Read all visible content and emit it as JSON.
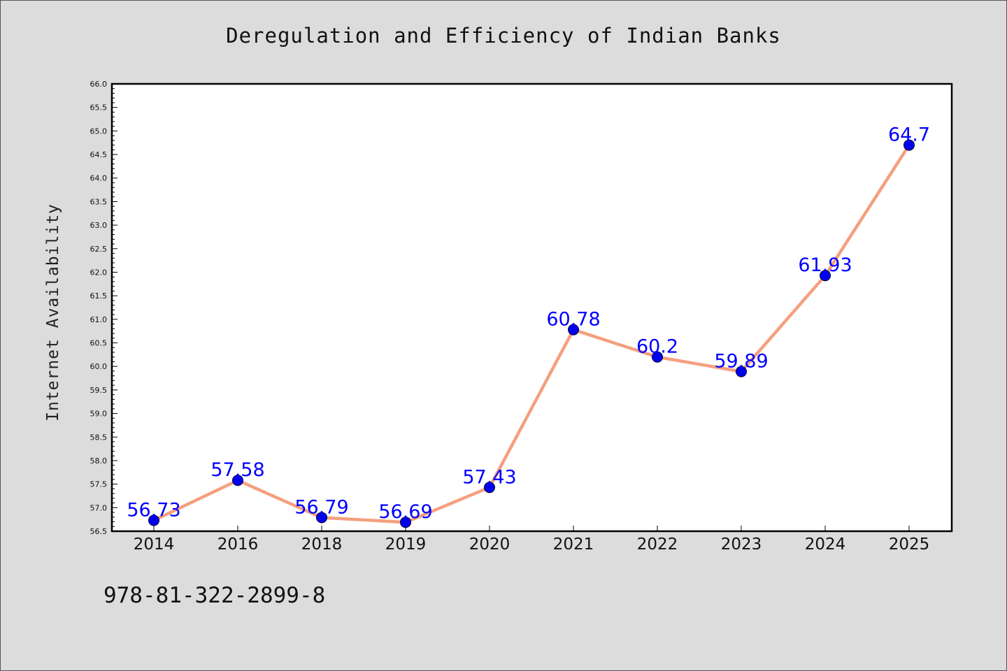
{
  "chart_data": {
    "type": "line",
    "title": "Deregulation and Efficiency of Indian Banks",
    "xlabel": "",
    "ylabel": "Internet Availability",
    "categories": [
      "2014",
      "2016",
      "2018",
      "2019",
      "2020",
      "2021",
      "2022",
      "2023",
      "2024",
      "2025"
    ],
    "values": [
      56.73,
      57.58,
      56.79,
      56.69,
      57.43,
      60.78,
      60.2,
      59.89,
      61.93,
      64.7
    ],
    "data_labels": [
      "56.73",
      "57.58",
      "56.79",
      "56.69",
      "57.43",
      "60.78",
      "60.2",
      "59.89",
      "61.93",
      "64.7"
    ],
    "ylim": [
      56.5,
      66.0
    ],
    "y_ticks": [
      "56.5",
      "57.0",
      "57.5",
      "58.0",
      "58.5",
      "59.0",
      "59.5",
      "60.0",
      "60.5",
      "61.0",
      "61.5",
      "62.0",
      "62.5",
      "63.0",
      "63.5",
      "64.0",
      "64.5",
      "65.0",
      "65.5",
      "66.0"
    ],
    "grid": false,
    "colors": {
      "line": "#f4a07e",
      "marker": "#0000ee",
      "label": "#0000ff",
      "plot_background": "#ffffff",
      "figure_background": "#dcdcdc"
    }
  },
  "footer_text": "978-81-322-2899-8"
}
